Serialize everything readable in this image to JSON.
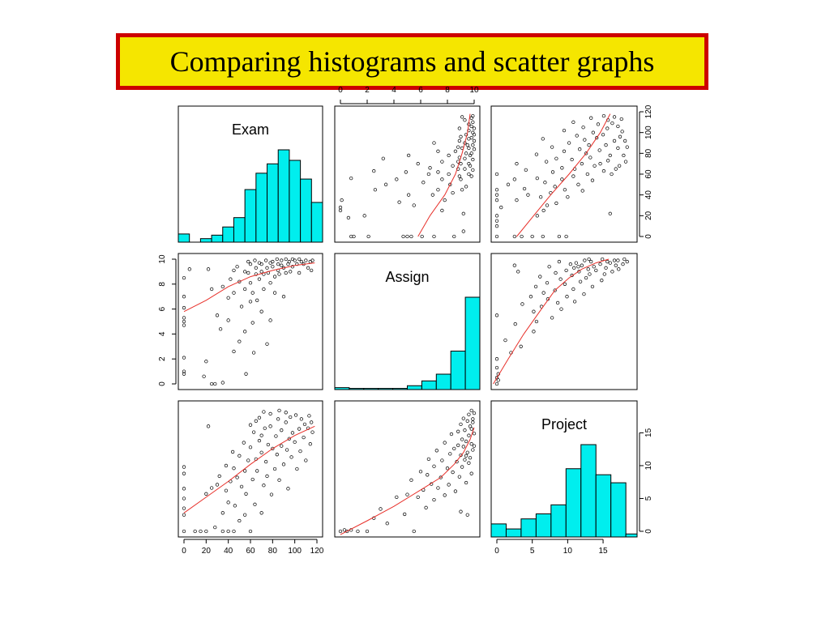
{
  "title": "Comparing histograms and scatter graphs",
  "chart_data": {
    "type": "scatter",
    "variables": [
      {
        "name": "Exam",
        "range": [
          0,
          120
        ],
        "ticks": [
          0,
          20,
          40,
          60,
          80,
          100,
          120
        ]
      },
      {
        "name": "Assign",
        "range": [
          0,
          10
        ],
        "ticks": [
          0,
          2,
          4,
          6,
          8,
          10
        ]
      },
      {
        "name": "Project",
        "range": [
          0,
          19
        ],
        "ticks": [
          0,
          5,
          10,
          15
        ]
      }
    ],
    "histograms": {
      "Exam": {
        "bins": [
          -5,
          5,
          15,
          25,
          35,
          45,
          55,
          65,
          75,
          85,
          95,
          105,
          115,
          125
        ],
        "counts": [
          7,
          0,
          3,
          6,
          13,
          21,
          45,
          59,
          67,
          79,
          70,
          54,
          34,
          5
        ]
      },
      "Assign": {
        "bins": [
          0,
          1,
          2,
          3,
          4,
          5,
          6,
          7,
          8,
          9,
          10
        ],
        "counts": [
          1,
          0.6,
          0.6,
          0.6,
          0.6,
          2,
          4.5,
          8,
          20,
          48
        ]
      },
      "Project": {
        "bins": [
          0,
          2,
          4,
          6,
          8,
          10,
          12,
          14,
          16,
          18,
          19.5
        ],
        "counts": [
          1.3,
          0.8,
          1.8,
          2.3,
          3.2,
          6.8,
          9.2,
          6.2,
          5.4,
          0.3
        ]
      }
    },
    "pairs": {
      "Exam-Assign": {
        "points": [
          [
            0,
            0.8
          ],
          [
            0,
            1.0
          ],
          [
            0,
            2.1
          ],
          [
            0,
            4.7
          ],
          [
            0,
            5.0
          ],
          [
            0,
            5.3
          ],
          [
            0,
            6.1
          ],
          [
            0,
            7.0
          ],
          [
            0,
            8.5
          ],
          [
            5,
            9.2
          ],
          [
            18,
            0.6
          ],
          [
            20,
            1.8
          ],
          [
            22,
            9.2
          ],
          [
            25,
            7.6
          ],
          [
            25,
            0.0
          ],
          [
            28,
            0.0
          ],
          [
            30,
            5.5
          ],
          [
            33,
            4.4
          ],
          [
            35,
            0.1
          ],
          [
            35,
            7.8
          ],
          [
            40,
            6.9
          ],
          [
            40,
            5.1
          ],
          [
            42,
            8.4
          ],
          [
            45,
            2.6
          ],
          [
            45,
            7.3
          ],
          [
            45,
            9.1
          ],
          [
            48,
            9.4
          ],
          [
            50,
            3.4
          ],
          [
            50,
            8.2
          ],
          [
            52,
            6.2
          ],
          [
            55,
            4.2
          ],
          [
            55,
            7.6
          ],
          [
            55,
            9.0
          ],
          [
            56,
            0.8
          ],
          [
            58,
            8.9
          ],
          [
            60,
            6.6
          ],
          [
            60,
            8.1
          ],
          [
            60,
            9.6
          ],
          [
            62,
            4.9
          ],
          [
            62,
            7.3
          ],
          [
            63,
            2.5
          ],
          [
            65,
            8.8
          ],
          [
            65,
            9.3
          ],
          [
            66,
            6.7
          ],
          [
            68,
            8.4
          ],
          [
            70,
            5.8
          ],
          [
            70,
            9.0
          ],
          [
            70,
            9.6
          ],
          [
            72,
            7.6
          ],
          [
            72,
            8.8
          ],
          [
            75,
            3.2
          ],
          [
            75,
            9.3
          ],
          [
            76,
            8.9
          ],
          [
            78,
            5.1
          ],
          [
            78,
            8.1
          ],
          [
            80,
            9.4
          ],
          [
            80,
            9.8
          ],
          [
            82,
            8.6
          ],
          [
            82,
            7.3
          ],
          [
            85,
            9.1
          ],
          [
            85,
            9.6
          ],
          [
            86,
            8.8
          ],
          [
            88,
            9.9
          ],
          [
            90,
            7.0
          ],
          [
            90,
            9.3
          ],
          [
            92,
            8.9
          ],
          [
            94,
            9.6
          ],
          [
            95,
            9.8
          ],
          [
            96,
            9.0
          ],
          [
            98,
            9.4
          ],
          [
            100,
            9.9
          ],
          [
            102,
            9.6
          ],
          [
            104,
            8.9
          ],
          [
            106,
            9.8
          ],
          [
            108,
            9.6
          ],
          [
            110,
            9.9
          ],
          [
            112,
            9.3
          ],
          [
            114,
            9.8
          ],
          [
            115,
            9.1
          ],
          [
            116,
            9.9
          ],
          [
            68,
            9.7
          ],
          [
            74,
            9.9
          ],
          [
            84,
            10.0
          ],
          [
            92,
            10.0
          ],
          [
            58,
            9.8
          ],
          [
            64,
            9.9
          ],
          [
            78,
            9.7
          ],
          [
            88,
            9.5
          ],
          [
            98,
            10.0
          ],
          [
            104,
            10.0
          ]
        ],
        "smooth": [
          [
            0,
            5.8
          ],
          [
            20,
            6.7
          ],
          [
            40,
            7.8
          ],
          [
            60,
            8.6
          ],
          [
            80,
            9.1
          ],
          [
            100,
            9.5
          ],
          [
            118,
            9.7
          ]
        ]
      },
      "Exam-Project": {
        "points": [
          [
            0,
            0.0
          ],
          [
            0,
            2.5
          ],
          [
            0,
            3.5
          ],
          [
            0,
            5.0
          ],
          [
            0,
            6.5
          ],
          [
            0,
            8.8
          ],
          [
            0,
            9.8
          ],
          [
            10,
            0.0
          ],
          [
            15,
            0.0
          ],
          [
            20,
            0.0
          ],
          [
            20,
            5.7
          ],
          [
            22,
            16.0
          ],
          [
            25,
            6.6
          ],
          [
            28,
            0.6
          ],
          [
            30,
            7.1
          ],
          [
            32,
            8.4
          ],
          [
            35,
            0.0
          ],
          [
            35,
            2.8
          ],
          [
            38,
            6.2
          ],
          [
            38,
            10.0
          ],
          [
            40,
            0.0
          ],
          [
            40,
            4.4
          ],
          [
            42,
            7.6
          ],
          [
            44,
            12.1
          ],
          [
            45,
            0.0
          ],
          [
            45,
            9.6
          ],
          [
            46,
            3.9
          ],
          [
            48,
            8.2
          ],
          [
            50,
            1.6
          ],
          [
            50,
            11.5
          ],
          [
            52,
            6.8
          ],
          [
            54,
            13.5
          ],
          [
            55,
            2.5
          ],
          [
            55,
            9.2
          ],
          [
            56,
            5.7
          ],
          [
            58,
            10.8
          ],
          [
            60,
            0.0
          ],
          [
            60,
            12.8
          ],
          [
            62,
            7.9
          ],
          [
            63,
            15.1
          ],
          [
            64,
            4.1
          ],
          [
            65,
            11.0
          ],
          [
            66,
            9.2
          ],
          [
            68,
            13.8
          ],
          [
            70,
            2.8
          ],
          [
            70,
            12.0
          ],
          [
            72,
            7.0
          ],
          [
            73,
            15.7
          ],
          [
            74,
            10.6
          ],
          [
            75,
            8.4
          ],
          [
            76,
            13.2
          ],
          [
            78,
            16.0
          ],
          [
            79,
            5.6
          ],
          [
            80,
            12.6
          ],
          [
            82,
            9.5
          ],
          [
            83,
            14.5
          ],
          [
            84,
            11.7
          ],
          [
            85,
            17.1
          ],
          [
            86,
            7.8
          ],
          [
            88,
            13.0
          ],
          [
            88,
            15.4
          ],
          [
            90,
            10.2
          ],
          [
            92,
            16.6
          ],
          [
            93,
            12.4
          ],
          [
            94,
            6.5
          ],
          [
            95,
            14.1
          ],
          [
            96,
            17.4
          ],
          [
            97,
            11.3
          ],
          [
            98,
            15.0
          ],
          [
            100,
            13.6
          ],
          [
            101,
            17.7
          ],
          [
            102,
            9.5
          ],
          [
            104,
            15.6
          ],
          [
            105,
            12.2
          ],
          [
            106,
            17.1
          ],
          [
            108,
            14.3
          ],
          [
            109,
            16.3
          ],
          [
            110,
            10.8
          ],
          [
            112,
            15.7
          ],
          [
            113,
            17.6
          ],
          [
            114,
            13.3
          ],
          [
            115,
            16.6
          ],
          [
            116,
            15.1
          ],
          [
            65,
            16.8
          ],
          [
            72,
            18.2
          ],
          [
            78,
            17.9
          ],
          [
            86,
            18.4
          ],
          [
            92,
            18.1
          ],
          [
            60,
            16.2
          ],
          [
            68,
            17.3
          ],
          [
            70,
            14.6
          ]
        ],
        "smooth": [
          [
            0,
            2.8
          ],
          [
            20,
            5.2
          ],
          [
            40,
            7.6
          ],
          [
            60,
            10.2
          ],
          [
            80,
            12.6
          ],
          [
            100,
            14.6
          ],
          [
            118,
            16.0
          ]
        ]
      },
      "Assign-Project": {
        "points": [
          [
            0,
            0.0
          ],
          [
            0.3,
            0.2
          ],
          [
            0.5,
            0.0
          ],
          [
            0.8,
            0.2
          ],
          [
            1.3,
            0.0
          ],
          [
            2.0,
            0.0
          ],
          [
            2.5,
            2.0
          ],
          [
            3.0,
            3.4
          ],
          [
            3.5,
            1.2
          ],
          [
            4.2,
            5.2
          ],
          [
            4.8,
            2.6
          ],
          [
            5.0,
            5.6
          ],
          [
            5.3,
            7.8
          ],
          [
            5.5,
            0.0
          ],
          [
            5.8,
            5.2
          ],
          [
            6.0,
            9.1
          ],
          [
            6.2,
            6.3
          ],
          [
            6.4,
            3.6
          ],
          [
            6.5,
            8.6
          ],
          [
            6.6,
            11.0
          ],
          [
            6.8,
            7.2
          ],
          [
            7.0,
            9.9
          ],
          [
            7.0,
            4.8
          ],
          [
            7.2,
            12.3
          ],
          [
            7.3,
            6.6
          ],
          [
            7.5,
            8.2
          ],
          [
            7.6,
            10.8
          ],
          [
            7.8,
            5.5
          ],
          [
            7.8,
            13.5
          ],
          [
            8.0,
            9.6
          ],
          [
            8.1,
            7.1
          ],
          [
            8.2,
            11.8
          ],
          [
            8.3,
            14.8
          ],
          [
            8.4,
            9.0
          ],
          [
            8.5,
            12.6
          ],
          [
            8.6,
            6.1
          ],
          [
            8.7,
            10.6
          ],
          [
            8.8,
            15.2
          ],
          [
            8.8,
            13.1
          ],
          [
            8.9,
            8.3
          ],
          [
            9.0,
            11.6
          ],
          [
            9.0,
            16.3
          ],
          [
            9.1,
            14.0
          ],
          [
            9.1,
            9.8
          ],
          [
            9.2,
            12.9
          ],
          [
            9.2,
            17.2
          ],
          [
            9.3,
            10.9
          ],
          [
            9.3,
            15.4
          ],
          [
            9.4,
            13.7
          ],
          [
            9.4,
            7.4
          ],
          [
            9.5,
            16.8
          ],
          [
            9.5,
            12.0
          ],
          [
            9.6,
            17.8
          ],
          [
            9.6,
            14.6
          ],
          [
            9.7,
            11.2
          ],
          [
            9.7,
            16.0
          ],
          [
            9.8,
            18.4
          ],
          [
            9.8,
            13.3
          ],
          [
            9.8,
            15.6
          ],
          [
            9.9,
            17.1
          ],
          [
            9.9,
            12.4
          ],
          [
            9.9,
            16.6
          ],
          [
            10.0,
            14.9
          ],
          [
            10.0,
            18.0
          ],
          [
            10.0,
            13.0
          ],
          [
            9.5,
            2.5
          ],
          [
            9.0,
            3.0
          ],
          [
            9.8,
            8.8
          ],
          [
            9.6,
            10.4
          ],
          [
            9.4,
            11.5
          ]
        ],
        "smooth": [
          [
            0,
            -0.5
          ],
          [
            2,
            1.6
          ],
          [
            4,
            3.8
          ],
          [
            6,
            6.3
          ],
          [
            7.5,
            8.2
          ],
          [
            8.5,
            10.2
          ],
          [
            9.2,
            12.0
          ],
          [
            9.7,
            14.0
          ],
          [
            10,
            15.8
          ]
        ]
      }
    }
  }
}
